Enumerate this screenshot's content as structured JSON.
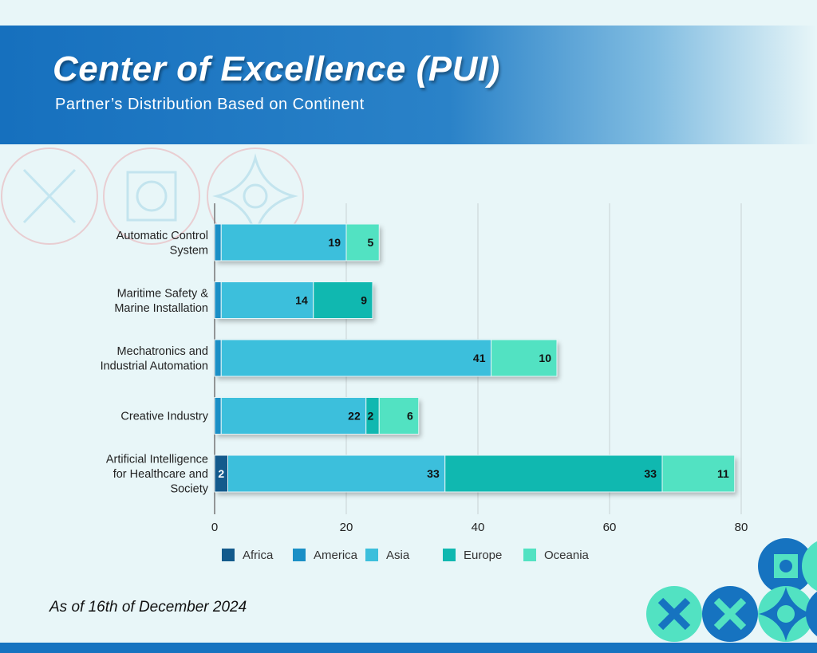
{
  "header": {
    "title": "Center of Excellence (PUI)",
    "subtitle": "Partner’s Distribution Based on Continent"
  },
  "footnote": "As of 16th of December 2024",
  "colors": {
    "Africa": "#135a8c",
    "America": "#1a8fc6",
    "Asia": "#3cbfdc",
    "Europe": "#10b8b0",
    "Oceania": "#52e2c2",
    "header": "#1670be"
  },
  "chart_data": {
    "type": "bar",
    "orientation": "horizontal",
    "stacked": true,
    "categories": [
      [
        "Automatic Control",
        "System"
      ],
      [
        "Maritime Safety &",
        "Marine Installation"
      ],
      [
        "Mechatronics and",
        "Industrial Automation"
      ],
      [
        "Creative Industry"
      ],
      [
        "Artificial Intelligence",
        "for Healthcare and",
        "Society"
      ]
    ],
    "series": [
      {
        "name": "Africa",
        "values": [
          0,
          0,
          0,
          0,
          2
        ]
      },
      {
        "name": "America",
        "values": [
          1,
          1,
          1,
          1,
          0
        ]
      },
      {
        "name": "Asia",
        "values": [
          19,
          14,
          41,
          22,
          33
        ]
      },
      {
        "name": "Europe",
        "values": [
          0,
          9,
          0,
          2,
          33
        ]
      },
      {
        "name": "Oceania",
        "values": [
          5,
          0,
          10,
          6,
          11
        ]
      }
    ],
    "xlim": [
      0,
      80
    ],
    "xticks": [
      0,
      20,
      40,
      60,
      80
    ],
    "grid": true,
    "legend": "bottom"
  }
}
